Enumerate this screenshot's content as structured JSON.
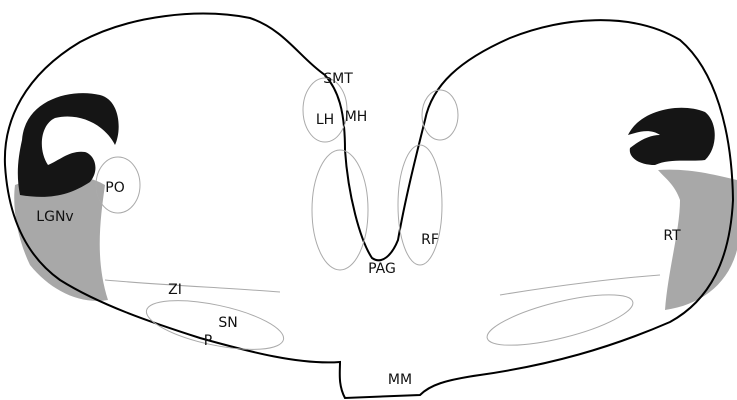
{
  "labels": {
    "smt": "SMT",
    "lh": "LH",
    "mh": "MH",
    "po": "PO",
    "lgnv": "LGNv",
    "rf": "RF",
    "pag": "PAG",
    "rt": "RT",
    "zi": "ZI",
    "sn": "SN",
    "p": "P",
    "mm": "MM"
  }
}
